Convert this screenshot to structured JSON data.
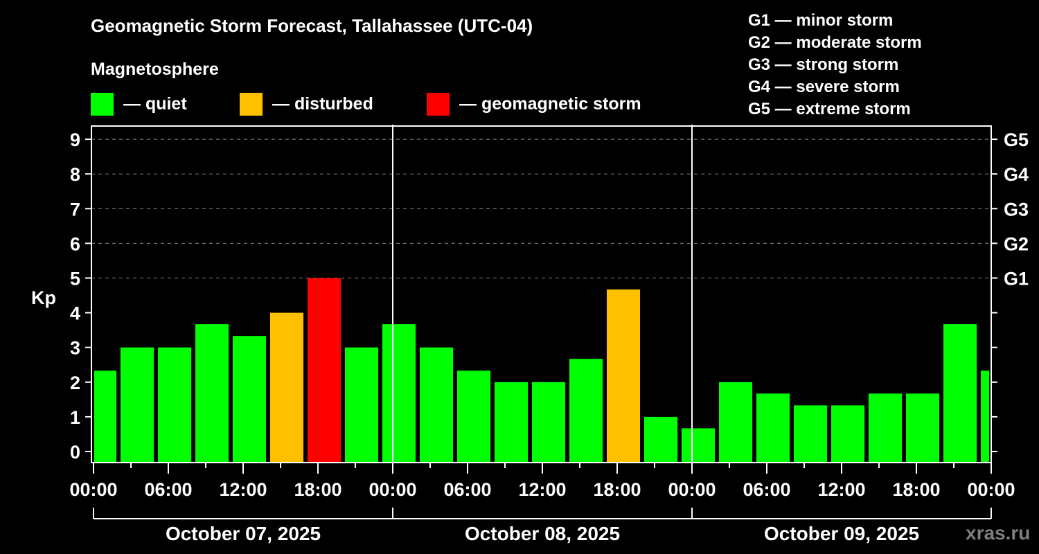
{
  "header": {
    "title": "Geomagnetic Storm Forecast, Tallahassee (UTC-04)",
    "subtitle": "Magnetosphere"
  },
  "legend": [
    {
      "label": "— quiet",
      "color": "#00ff00"
    },
    {
      "label": "— disturbed",
      "color": "#ffc000"
    },
    {
      "label": "— geomagnetic storm",
      "color": "#ff0000"
    }
  ],
  "storm_scale": [
    "G1 — minor storm",
    "G2 — moderate storm",
    "G3 — strong storm",
    "G4 — severe storm",
    "G5 — extreme storm"
  ],
  "watermark": "xras.ru",
  "chart_data": {
    "type": "bar",
    "title": "Geomagnetic Storm Forecast, Tallahassee (UTC-04)",
    "ylabel": "Kp",
    "xlabel": "",
    "ylim": [
      -0.3,
      9.6
    ],
    "grid": true,
    "y_ticks": [
      0,
      1,
      2,
      3,
      4,
      5,
      6,
      7,
      8,
      9
    ],
    "y_dashed_gridlines": [
      5,
      6,
      7,
      8,
      9
    ],
    "right_axis_labels": [
      {
        "kp": 5,
        "label": "G1"
      },
      {
        "kp": 6,
        "label": "G2"
      },
      {
        "kp": 7,
        "label": "G3"
      },
      {
        "kp": 8,
        "label": "G4"
      },
      {
        "kp": 9,
        "label": "G5"
      }
    ],
    "x_range_hours": [
      0,
      72
    ],
    "x_tick_labels": [
      "00:00",
      "06:00",
      "12:00",
      "18:00",
      "00:00",
      "06:00",
      "12:00",
      "18:00",
      "00:00",
      "06:00",
      "12:00",
      "18:00",
      "00:00"
    ],
    "days": [
      "October 07, 2025",
      "October 08, 2025",
      "October 09, 2025"
    ],
    "bar_width_hours": 2.67,
    "thresholds": {
      "disturbed": 4,
      "storm": 5
    },
    "colors": {
      "quiet": "#00ff00",
      "disturbed": "#ffc000",
      "storm": "#ff0000"
    },
    "bars": [
      {
        "hour": 0.5,
        "kp": 2.33,
        "level": "quiet"
      },
      {
        "hour": 3.5,
        "kp": 3.0,
        "level": "quiet"
      },
      {
        "hour": 6.5,
        "kp": 3.0,
        "level": "quiet"
      },
      {
        "hour": 9.5,
        "kp": 3.67,
        "level": "quiet"
      },
      {
        "hour": 12.5,
        "kp": 3.33,
        "level": "quiet"
      },
      {
        "hour": 15.5,
        "kp": 4.0,
        "level": "disturbed"
      },
      {
        "hour": 18.5,
        "kp": 5.0,
        "level": "storm"
      },
      {
        "hour": 21.5,
        "kp": 3.0,
        "level": "quiet"
      },
      {
        "hour": 24.5,
        "kp": 3.67,
        "level": "quiet"
      },
      {
        "hour": 27.5,
        "kp": 3.0,
        "level": "quiet"
      },
      {
        "hour": 30.5,
        "kp": 2.33,
        "level": "quiet"
      },
      {
        "hour": 33.5,
        "kp": 2.0,
        "level": "quiet"
      },
      {
        "hour": 36.5,
        "kp": 2.0,
        "level": "quiet"
      },
      {
        "hour": 39.5,
        "kp": 2.67,
        "level": "quiet"
      },
      {
        "hour": 42.5,
        "kp": 4.67,
        "level": "disturbed"
      },
      {
        "hour": 45.5,
        "kp": 1.0,
        "level": "quiet"
      },
      {
        "hour": 48.5,
        "kp": 0.67,
        "level": "quiet"
      },
      {
        "hour": 51.5,
        "kp": 2.0,
        "level": "quiet"
      },
      {
        "hour": 54.5,
        "kp": 1.67,
        "level": "quiet"
      },
      {
        "hour": 57.5,
        "kp": 1.33,
        "level": "quiet"
      },
      {
        "hour": 60.5,
        "kp": 1.33,
        "level": "quiet"
      },
      {
        "hour": 63.5,
        "kp": 1.67,
        "level": "quiet"
      },
      {
        "hour": 66.5,
        "kp": 1.67,
        "level": "quiet"
      },
      {
        "hour": 69.5,
        "kp": 3.67,
        "level": "quiet"
      },
      {
        "hour": 72.5,
        "kp": 2.33,
        "level": "quiet"
      }
    ]
  }
}
